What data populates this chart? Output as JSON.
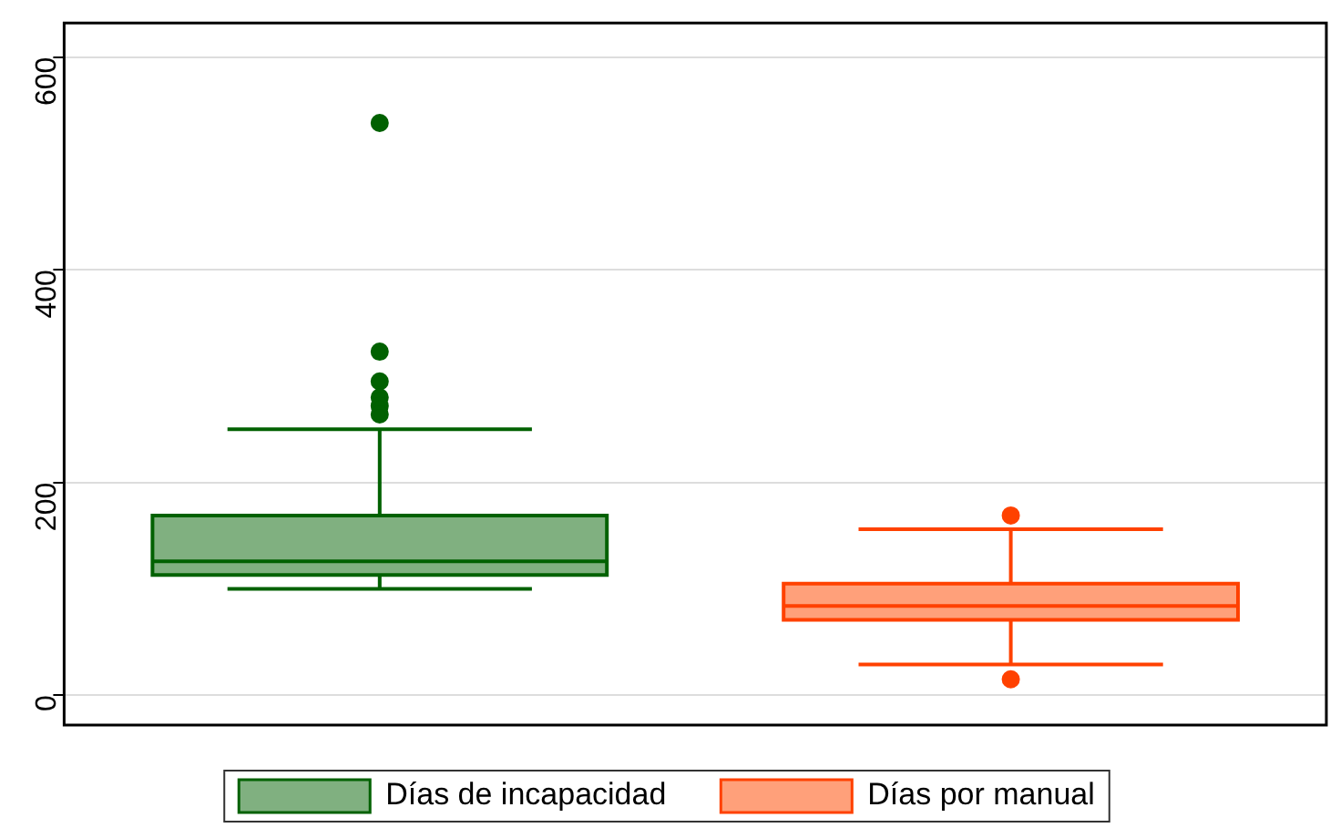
{
  "chart_data": {
    "type": "box",
    "categories": [
      null,
      null
    ],
    "series": [
      {
        "name": "Días de incapacidad",
        "color": "#80b080",
        "boxes": [
          {
            "low": 100,
            "q1": 113,
            "median": 126,
            "q3": 169,
            "high": 250,
            "outliers": [
              538,
              323,
              295,
              280,
              272,
              264
            ]
          },
          null
        ]
      },
      {
        "name": "Días por manual",
        "color": "#ffa07a",
        "boxes": [
          null,
          {
            "low": 29,
            "q1": 71,
            "median": 84,
            "q3": 105,
            "high": 156,
            "outliers": [
              169,
              15
            ]
          }
        ]
      }
    ],
    "ylim": [
      -28,
      632
    ],
    "yticks": [
      0,
      200,
      400,
      600
    ],
    "grid": "y",
    "legend": "bottom",
    "marker": "circle"
  }
}
